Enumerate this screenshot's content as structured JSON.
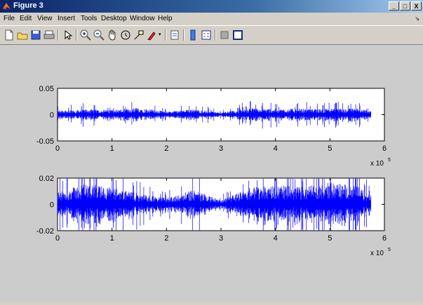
{
  "window": {
    "title": "Figure 3",
    "buttons": {
      "minimize": "_",
      "maximize": "□",
      "close": "X"
    }
  },
  "menu": {
    "items": [
      "File",
      "Edit",
      "View",
      "Insert",
      "Tools",
      "Desktop",
      "Window",
      "Help"
    ]
  },
  "toolbar": {
    "icons": [
      "new-figure-icon",
      "open-file-icon",
      "save-icon",
      "print-icon",
      "pointer-icon",
      "zoom-in-icon",
      "zoom-out-icon",
      "pan-icon",
      "rotate3d-icon",
      "data-cursor-icon",
      "brush-icon",
      "link-icon",
      "colorbar-icon",
      "legend-icon",
      "hide-plot-tools-icon",
      "show-plot-tools-icon"
    ]
  },
  "colors": {
    "signal": "#0000ff",
    "axes_bg": "#ffffff",
    "figure_bg": "#cccccc"
  },
  "chart_data": [
    {
      "type": "line",
      "xlim": [
        0,
        600000
      ],
      "ylim": [
        -0.05,
        0.05
      ],
      "xticks": [
        "0",
        "1",
        "2",
        "3",
        "4",
        "5",
        "6"
      ],
      "yticks": [
        "0.05",
        "0",
        "-0.05"
      ],
      "x_exponent_label": "x 10",
      "x_exponent": "5",
      "series": [
        {
          "x": [
            0,
            50000,
            100000,
            150000,
            200000,
            250000,
            300000,
            350000,
            400000,
            450000,
            500000,
            550000,
            575000
          ],
          "envelope": [
            0.008,
            0.01,
            0.009,
            0.013,
            0.006,
            0.01,
            0.004,
            0.012,
            0.011,
            0.011,
            0.011,
            0.012,
            0.006
          ]
        }
      ]
    },
    {
      "type": "line",
      "xlim": [
        0,
        600000
      ],
      "ylim": [
        -0.02,
        0.02
      ],
      "xticks": [
        "0",
        "1",
        "2",
        "3",
        "4",
        "5",
        "6"
      ],
      "yticks": [
        "0.02",
        "0",
        "-0.02"
      ],
      "x_exponent_label": "x 10",
      "x_exponent": "5",
      "series": [
        {
          "x": [
            0,
            50000,
            100000,
            150000,
            200000,
            250000,
            300000,
            350000,
            400000,
            450000,
            500000,
            550000,
            575000
          ],
          "envelope": [
            0.009,
            0.016,
            0.013,
            0.008,
            0.005,
            0.011,
            0.003,
            0.013,
            0.015,
            0.013,
            0.017,
            0.014,
            0.007
          ]
        }
      ]
    }
  ]
}
